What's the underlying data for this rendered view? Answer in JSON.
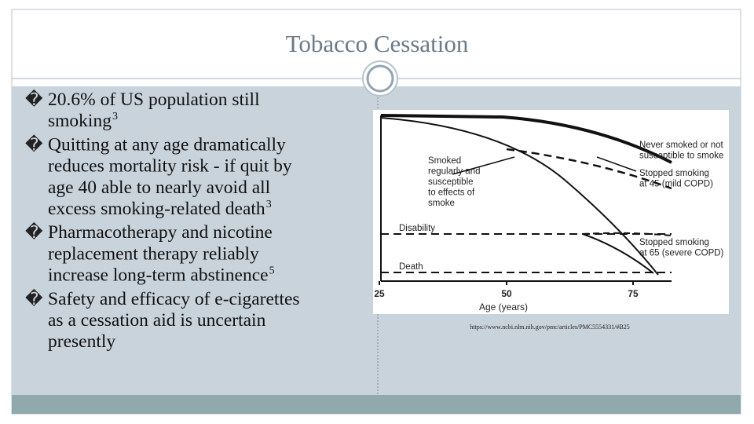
{
  "header": {
    "title": "Tobacco Cessation"
  },
  "bullet_marker": "�",
  "bullets": [
    {
      "lines": [
        "20.6% of US population still",
        "smoking"
      ],
      "note": "3"
    },
    {
      "lines": [
        "Quitting at any age dramatically",
        "reduces mortality risk - if quit by",
        "age 40 able to nearly avoid all",
        "excess smoking-related death"
      ],
      "note": "3"
    },
    {
      "lines": [
        "Pharmacotherapy and nicotine",
        "replacement therapy reliably",
        "increase long-term abstinence"
      ],
      "note": "5"
    },
    {
      "lines": [
        "Safety and efficacy of e-cigarettes",
        "as a cessation aid is uncertain",
        "presently"
      ]
    }
  ],
  "figure": {
    "labels": {
      "never": [
        "Never smoked or not",
        "susceptible to smoke"
      ],
      "smoked": [
        "Smoked",
        "regularly and",
        "susceptible",
        "to effects of",
        "smoke"
      ],
      "stopped45": [
        "Stopped smoking",
        "at 45 (mild COPD)"
      ],
      "stopped65": [
        "Stopped smoking",
        "at 65 (severe COPD)"
      ],
      "disability": "Disability",
      "death": "Death"
    },
    "x_ticks": [
      "25",
      "50",
      "75"
    ],
    "x_label": "Age (years)"
  },
  "source": "https://www.ncbi.nlm.nih.gov/pmc/articles/PMC5554331/#B25"
}
